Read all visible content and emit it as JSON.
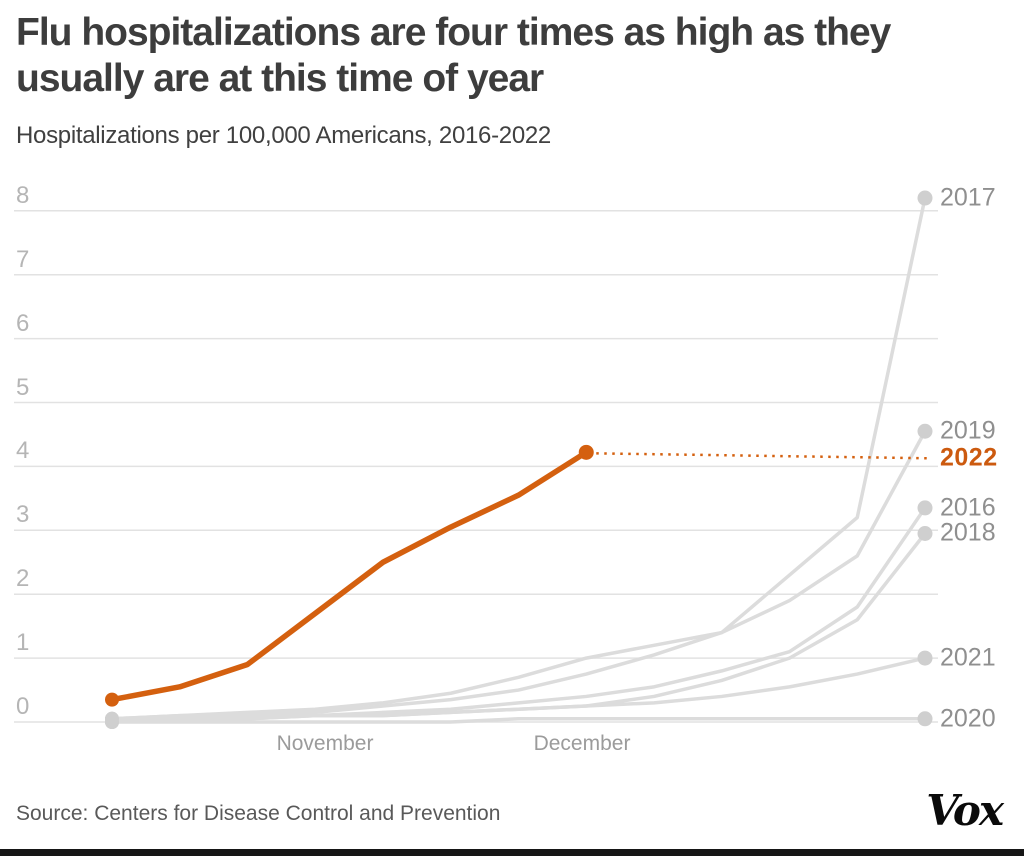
{
  "header": {
    "title": "Flu hospitalizations are four times as high as they usually are at this time of year",
    "subtitle": "Hospitalizations per 100,000 Americans, 2016-2022"
  },
  "footer": {
    "source": "Source: Centers for Disease Control and Prevention",
    "logo": "Vox"
  },
  "chart_data": {
    "type": "line",
    "title": "Flu hospitalizations are four times as high as they usually are at this time of year",
    "subtitle": "Hospitalizations per 100,000 Americans, 2016-2022",
    "ylabel": "Hospitalizations per 100,000 Americans",
    "ylim": [
      0,
      8
    ],
    "yticks": [
      "0",
      "1",
      "2",
      "3",
      "4",
      "5",
      "6",
      "7",
      "8"
    ],
    "grid": "horizontal",
    "legend_position": "right-edge-labels",
    "x_unit": "weeks, mid-October through December",
    "xlabels": [
      {
        "label": "November",
        "x": 325
      },
      {
        "label": "December",
        "x": 582
      }
    ],
    "colors": {
      "highlight": "#d4600f",
      "highlight_label": "#cc5a0f",
      "muted_line": "#dcdcdc",
      "muted_dot": "#cfcfcf",
      "gridline": "#e2e2e2"
    },
    "series": [
      {
        "name": "2020",
        "highlight": false,
        "values": [
          0.0,
          0.0,
          0.0,
          0.0,
          0.0,
          0.0,
          0.05,
          0.05,
          0.05,
          0.05,
          0.05,
          0.05,
          0.05
        ]
      },
      {
        "name": "2021",
        "highlight": false,
        "values": [
          0.0,
          0.05,
          0.05,
          0.1,
          0.1,
          0.15,
          0.2,
          0.25,
          0.3,
          0.4,
          0.55,
          0.75,
          1.0
        ]
      },
      {
        "name": "2018",
        "highlight": false,
        "values": [
          0.0,
          0.05,
          0.05,
          0.1,
          0.1,
          0.15,
          0.2,
          0.25,
          0.4,
          0.65,
          1.0,
          1.6,
          2.95
        ]
      },
      {
        "name": "2016",
        "highlight": false,
        "values": [
          0.05,
          0.05,
          0.1,
          0.1,
          0.15,
          0.2,
          0.3,
          0.4,
          0.55,
          0.8,
          1.1,
          1.8,
          3.35
        ]
      },
      {
        "name": "2019",
        "highlight": false,
        "values": [
          0.05,
          0.1,
          0.1,
          0.15,
          0.25,
          0.35,
          0.5,
          0.75,
          1.05,
          1.4,
          1.9,
          2.6,
          4.55
        ]
      },
      {
        "name": "2017",
        "highlight": false,
        "values": [
          0.05,
          0.1,
          0.15,
          0.2,
          0.3,
          0.45,
          0.7,
          1.0,
          1.2,
          1.4,
          2.3,
          3.2,
          8.2
        ]
      },
      {
        "name": "2022",
        "highlight": true,
        "leader_dotted": true,
        "values": [
          0.35,
          0.55,
          0.9,
          1.7,
          2.5,
          3.05,
          3.55,
          4.22
        ]
      }
    ]
  }
}
